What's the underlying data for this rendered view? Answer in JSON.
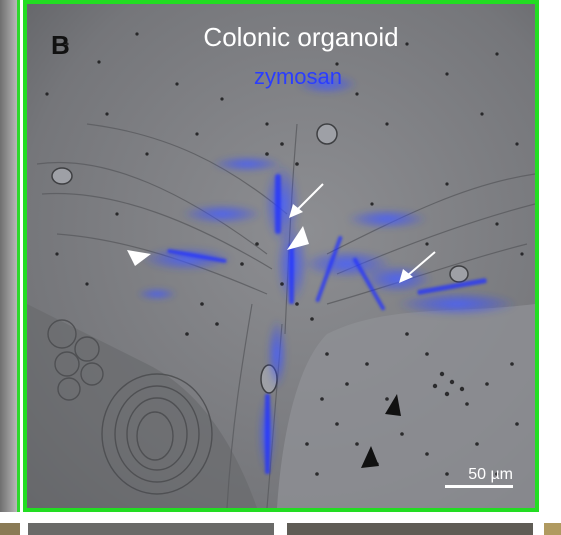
{
  "panel": {
    "label": "B",
    "title": "Colonic  organoid",
    "subtitle": "zymosan",
    "scale_bar": "50 µm"
  },
  "colors": {
    "frame": "#22dd22",
    "stain": "#2a3dff",
    "arrow_white": "#ffffff",
    "arrow_black": "#111111"
  },
  "annotations": {
    "white_arrows": 2,
    "white_arrowheads": 2,
    "black_arrowheads": 2
  }
}
